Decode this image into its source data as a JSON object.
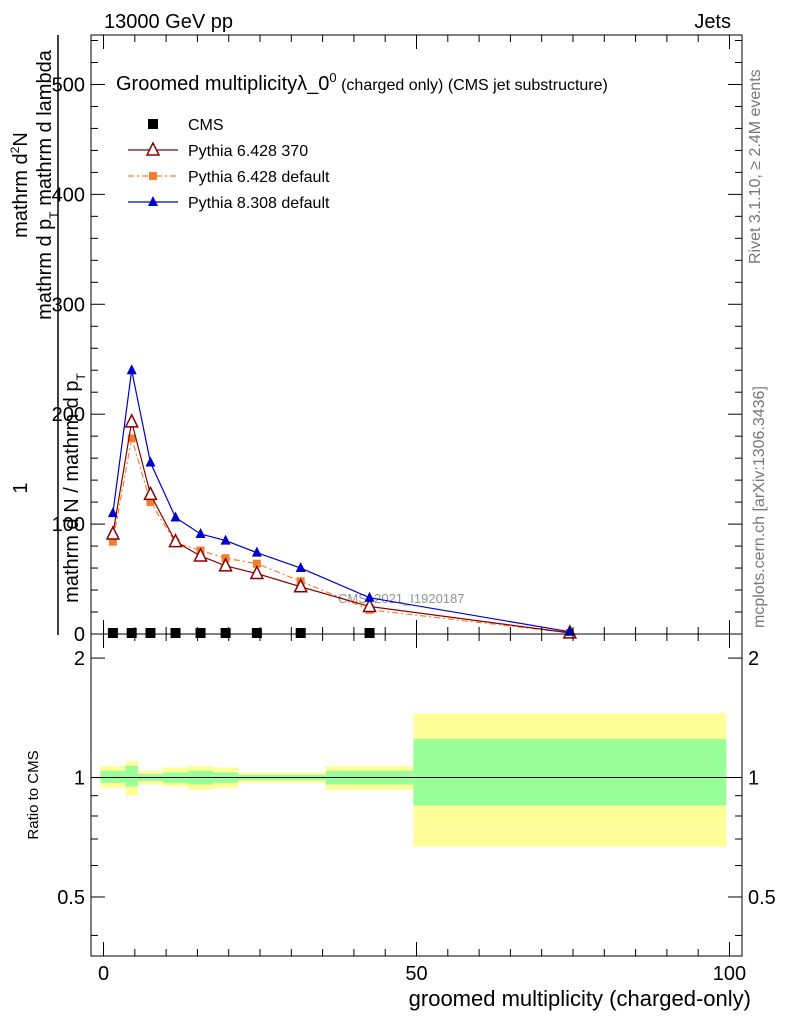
{
  "header": {
    "left": "13000 GeV pp",
    "right": "Jets"
  },
  "side_labels": {
    "rivet": "Rivet 3.1.10, ≥ 2.4M events",
    "mcplots": "mcplots.cern.ch [arXiv:1306.3436]"
  },
  "watermark": "CMS_2021_I1920187",
  "colors": {
    "cms": "#000000",
    "py6_370": "#8b0000",
    "py6_default": "#f08030",
    "py8": "#0000cc",
    "band_outer": "#ffff99",
    "band_inner": "#99ff99"
  },
  "chart_data": [
    {
      "type": "line",
      "title_main": "Groomed multiplicityλ_0",
      "title_sup": "0",
      "title_rest": " (charged only) (CMS jet substructure)",
      "ylabel_numerator_line1": "mathrm d",
      "ylabel_numerator_sup": "2",
      "ylabel_numerator_line2": "N",
      "ylabel_numerator_line3": "mathrm d p",
      "ylabel_numerator_sub": "T",
      "ylabel_numerator_line4": " mathrm d lambda",
      "ylabel_one": "1",
      "ylabel_denominator": "mathrm d N / mathrm d p",
      "ylabel_denominator_sub": "T",
      "xlim": [
        -2,
        102
      ],
      "ylim": [
        0,
        545
      ],
      "y_ticks": [
        0,
        100,
        200,
        300,
        400,
        500
      ],
      "y_tick_labels": [
        "0",
        "100",
        "200",
        "300",
        "400",
        "500"
      ],
      "legend_position": "top-left",
      "series": [
        {
          "name": "CMS",
          "x": [
            1.5,
            4.5,
            7.5,
            11.5,
            15.5,
            19.5,
            24.5,
            31.5,
            42.5
          ],
          "y": [
            1,
            1,
            1,
            1,
            1,
            1,
            1,
            1,
            1
          ],
          "marker": "square"
        },
        {
          "name": "Pythia 6.428 370",
          "x": [
            1.5,
            4.5,
            7.5,
            11.5,
            15.5,
            19.5,
            24.5,
            31.5,
            42.5,
            74.5
          ],
          "y": [
            91,
            193,
            127,
            84,
            71,
            62,
            55,
            43,
            25,
            1
          ],
          "marker": "open-triangle"
        },
        {
          "name": "Pythia 6.428 default",
          "x": [
            1.5,
            4.5,
            7.5,
            11.5,
            15.5,
            19.5,
            24.5,
            31.5,
            42.5,
            74.5
          ],
          "y": [
            84,
            178,
            120,
            83,
            76,
            69,
            64,
            48,
            22,
            1
          ],
          "marker": "small-square"
        },
        {
          "name": "Pythia 8.308 default",
          "x": [
            1.5,
            4.5,
            7.5,
            11.5,
            15.5,
            19.5,
            24.5,
            31.5,
            42.5,
            74.5
          ],
          "y": [
            110,
            240,
            156,
            106,
            91,
            85,
            74,
            60,
            33,
            2
          ],
          "marker": "filled-triangle"
        }
      ]
    },
    {
      "type": "area",
      "ylabel": "Ratio to CMS",
      "xlabel": "groomed multiplicity (charged-only)",
      "xlim": [
        -2,
        102
      ],
      "ylim": [
        0.355,
        2.3
      ],
      "y_ticks": [
        0.5,
        1,
        2
      ],
      "y_tick_labels": [
        "0.5",
        "1",
        "2"
      ],
      "x_ticks": [
        0,
        50,
        100
      ],
      "x_tick_labels": [
        "0",
        "50",
        "100"
      ],
      "reference_line": 1,
      "bins": [
        {
          "x0": -0.5,
          "x1": 3.5,
          "outer": [
            0.94,
            1.07
          ],
          "inner": [
            0.97,
            1.04
          ]
        },
        {
          "x0": 3.5,
          "x1": 5.5,
          "outer": [
            0.9,
            1.1
          ],
          "inner": [
            0.95,
            1.07
          ]
        },
        {
          "x0": 5.5,
          "x1": 9.5,
          "outer": [
            0.96,
            1.04
          ],
          "inner": [
            0.98,
            1.02
          ]
        },
        {
          "x0": 9.5,
          "x1": 13.5,
          "outer": [
            0.95,
            1.06
          ],
          "inner": [
            0.97,
            1.03
          ]
        },
        {
          "x0": 13.5,
          "x1": 17.5,
          "outer": [
            0.93,
            1.07
          ],
          "inner": [
            0.96,
            1.04
          ]
        },
        {
          "x0": 17.5,
          "x1": 21.5,
          "outer": [
            0.94,
            1.06
          ],
          "inner": [
            0.97,
            1.03
          ]
        },
        {
          "x0": 21.5,
          "x1": 35.5,
          "outer": [
            0.97,
            1.03
          ],
          "inner": [
            0.985,
            1.015
          ]
        },
        {
          "x0": 35.5,
          "x1": 49.5,
          "outer": [
            0.93,
            1.07
          ],
          "inner": [
            0.96,
            1.04
          ]
        },
        {
          "x0": 49.5,
          "x1": 99.5,
          "outer": [
            0.67,
            1.45
          ],
          "inner": [
            0.85,
            1.25
          ]
        }
      ]
    }
  ]
}
